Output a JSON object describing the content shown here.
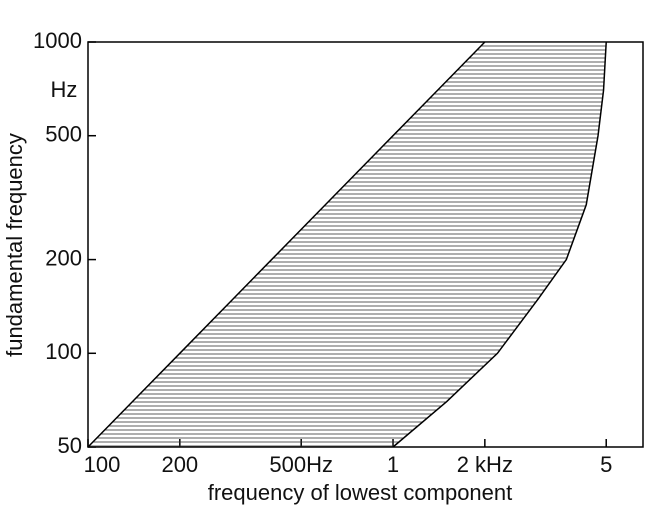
{
  "chart_data": {
    "type": "range",
    "x_label": "frequency of lowest component",
    "y_label": "fundamental frequency",
    "y_unit": "Hz",
    "log_x": true,
    "log_y": true,
    "xlim": [
      100,
      6600
    ],
    "ylim": [
      50,
      1000
    ],
    "xticks": [
      100,
      200,
      {
        "value": 500,
        "label": "500Hz"
      },
      {
        "value": 1000,
        "label": "1"
      },
      {
        "value": 2000,
        "label": "2 kHz"
      },
      {
        "value": 5000,
        "label": "5"
      }
    ],
    "yticks": [
      50,
      100,
      200,
      500,
      1000
    ],
    "y": [
      50,
      70,
      100,
      150,
      200,
      300,
      500,
      700,
      1000
    ],
    "x_low": [
      100,
      140,
      200,
      300,
      400,
      600,
      1000,
      1400,
      2000
    ],
    "x_high": [
      1000,
      1500,
      2200,
      3000,
      3700,
      4300,
      4700,
      4900,
      5000
    ],
    "color": "#000000",
    "hatch": true
  }
}
